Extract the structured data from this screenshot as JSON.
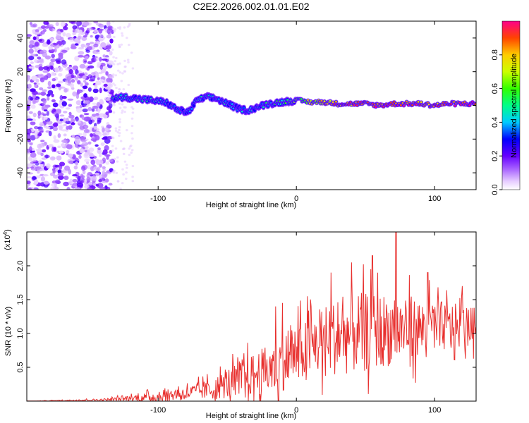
{
  "title": "C2E2.2026.002.01.01.E02",
  "colors": {
    "background": "#ffffff",
    "axis": "#000000",
    "snr_line": "#e8302e"
  },
  "chart_data": [
    {
      "type": "heatmap",
      "xlabel": "Height of straight line (km)",
      "ylabel": "Frequency (Hz)",
      "xlim": [
        -195,
        130
      ],
      "ylim": [
        -50,
        50
      ],
      "x_ticks": [
        -100,
        0,
        100
      ],
      "x_tick_labels": [
        "-100",
        "0",
        "100"
      ],
      "y_ticks": [
        -40,
        -20,
        0,
        20,
        40
      ],
      "y_tick_labels": [
        "-40",
        "-20",
        "0",
        "20",
        "40"
      ],
      "colorbar": {
        "label": "Normalized spectral amplitude",
        "range": [
          0,
          1
        ],
        "ticks": [
          0.0,
          0.2,
          0.4,
          0.6,
          0.8
        ],
        "tick_labels": [
          "0.0",
          "0.2",
          "0.4",
          "0.6",
          "0.8"
        ]
      },
      "noise_region_x": [
        -195,
        -133
      ],
      "trace": [
        {
          "x": -133,
          "f": 4.0,
          "a": 0.4
        },
        {
          "x": -125,
          "f": 5.0,
          "a": 0.45
        },
        {
          "x": -115,
          "f": 4.0,
          "a": 0.4
        },
        {
          "x": -105,
          "f": 3.0,
          "a": 0.4
        },
        {
          "x": -95,
          "f": 2.0,
          "a": 0.35
        },
        {
          "x": -85,
          "f": -3.0,
          "a": 0.35
        },
        {
          "x": -78,
          "f": -4.0,
          "a": 0.3
        },
        {
          "x": -72,
          "f": 3.0,
          "a": 0.4
        },
        {
          "x": -65,
          "f": 5.0,
          "a": 0.4
        },
        {
          "x": -58,
          "f": 4.0,
          "a": 0.4
        },
        {
          "x": -50,
          "f": 1.0,
          "a": 0.4
        },
        {
          "x": -42,
          "f": -2.0,
          "a": 0.35
        },
        {
          "x": -35,
          "f": -3.0,
          "a": 0.35
        },
        {
          "x": -28,
          "f": -1.0,
          "a": 0.4
        },
        {
          "x": -20,
          "f": 1.0,
          "a": 0.45
        },
        {
          "x": -10,
          "f": 2.0,
          "a": 0.5
        },
        {
          "x": 0,
          "f": 3.0,
          "a": 0.6
        },
        {
          "x": 10,
          "f": 2.0,
          "a": 0.7
        },
        {
          "x": 20,
          "f": 2.0,
          "a": 0.8
        },
        {
          "x": 30,
          "f": 1.0,
          "a": 0.85
        },
        {
          "x": 40,
          "f": 1.0,
          "a": 0.85
        },
        {
          "x": 50,
          "f": 1.0,
          "a": 0.85
        },
        {
          "x": 60,
          "f": 0.0,
          "a": 0.9
        },
        {
          "x": 70,
          "f": 1.0,
          "a": 0.9
        },
        {
          "x": 80,
          "f": 1.0,
          "a": 0.9
        },
        {
          "x": 90,
          "f": 1.0,
          "a": 0.9
        },
        {
          "x": 100,
          "f": 0.0,
          "a": 0.9
        },
        {
          "x": 110,
          "f": 1.0,
          "a": 0.9
        },
        {
          "x": 120,
          "f": 1.0,
          "a": 0.92
        },
        {
          "x": 130,
          "f": 1.0,
          "a": 0.92
        }
      ]
    },
    {
      "type": "line",
      "xlabel": "Height of straight line (km)",
      "ylabel": "SNR (10 * v/v)",
      "y_multiplier": "(x10",
      "y_multiplier_exp": "4",
      "y_multiplier_close": ")",
      "xlim": [
        -195,
        130
      ],
      "ylim": [
        0,
        2.5
      ],
      "x_ticks": [
        -100,
        0,
        100
      ],
      "x_tick_labels": [
        "-100",
        "0",
        "100"
      ],
      "y_ticks": [
        0.5,
        1.0,
        1.5,
        2.0
      ],
      "y_tick_labels": [
        "0.5",
        "1.0",
        "1.5",
        "2.0"
      ],
      "envelope": [
        {
          "x": -195,
          "base": 0.0,
          "amp": 0.0
        },
        {
          "x": -140,
          "base": 0.02,
          "amp": 0.02
        },
        {
          "x": -120,
          "base": 0.04,
          "amp": 0.06
        },
        {
          "x": -100,
          "base": 0.07,
          "amp": 0.1
        },
        {
          "x": -80,
          "base": 0.12,
          "amp": 0.12
        },
        {
          "x": -60,
          "base": 0.18,
          "amp": 0.2
        },
        {
          "x": -45,
          "base": 0.3,
          "amp": 0.32
        },
        {
          "x": -30,
          "base": 0.4,
          "amp": 0.4
        },
        {
          "x": -15,
          "base": 0.5,
          "amp": 0.5
        },
        {
          "x": 0,
          "base": 0.7,
          "amp": 0.55
        },
        {
          "x": 20,
          "base": 0.9,
          "amp": 0.65
        },
        {
          "x": 40,
          "base": 1.0,
          "amp": 0.75
        },
        {
          "x": 60,
          "base": 1.05,
          "amp": 0.7
        },
        {
          "x": 80,
          "base": 1.05,
          "amp": 0.6
        },
        {
          "x": 100,
          "base": 1.1,
          "amp": 0.5
        },
        {
          "x": 120,
          "base": 1.1,
          "amp": 0.4
        },
        {
          "x": 130,
          "base": 1.1,
          "amp": 0.35
        }
      ],
      "peaks": [
        {
          "x": -10,
          "y": 1.45
        },
        {
          "x": -15,
          "y": 1.4
        },
        {
          "x": 25,
          "y": 1.9
        },
        {
          "x": 40,
          "y": 2.05
        },
        {
          "x": 55,
          "y": 2.15
        },
        {
          "x": 72,
          "y": 2.5
        },
        {
          "x": 95,
          "y": 1.9
        },
        {
          "x": 120,
          "y": 1.7
        }
      ]
    }
  ]
}
